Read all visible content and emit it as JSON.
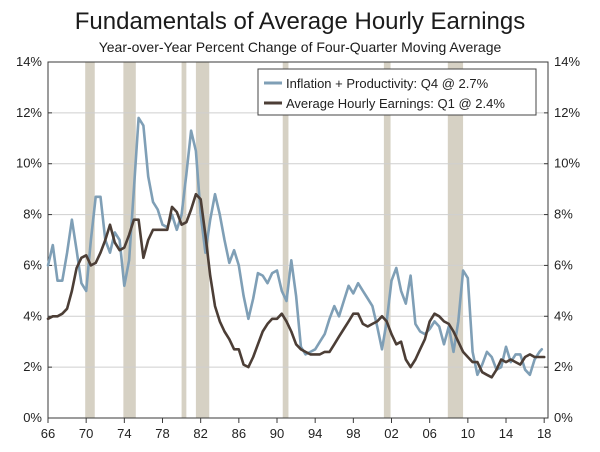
{
  "chart_data": {
    "type": "line",
    "title": "Fundamentals of Average Hourly Earnings",
    "subtitle": "Year-over-Year Percent Change of Four-Quarter Moving Average",
    "xlabel": "",
    "ylabel": "",
    "xlim": [
      1966,
      2018.4
    ],
    "ylim": [
      0,
      14
    ],
    "x_ticks": [
      1966,
      1970,
      1974,
      1978,
      1982,
      1986,
      1990,
      1994,
      1998,
      2002,
      2006,
      2010,
      2014,
      2018
    ],
    "x_tick_labels": [
      "66",
      "70",
      "74",
      "78",
      "82",
      "86",
      "90",
      "94",
      "98",
      "02",
      "06",
      "10",
      "14",
      "18"
    ],
    "y_ticks": [
      0,
      2,
      4,
      6,
      8,
      10,
      12,
      14
    ],
    "y_tick_labels": [
      "0%",
      "2%",
      "4%",
      "6%",
      "8%",
      "10%",
      "12%",
      "14%"
    ],
    "grid": "horizontal",
    "legend_position": "top-right",
    "recessions": [
      [
        1969.9,
        1970.9
      ],
      [
        1973.9,
        1975.2
      ],
      [
        1980.0,
        1980.5
      ],
      [
        1981.5,
        1982.9
      ],
      [
        1990.6,
        1991.2
      ],
      [
        2001.2,
        2001.9
      ],
      [
        2007.9,
        2009.5
      ]
    ],
    "series": [
      {
        "name": "Inflation + Productivity: Q4 @ 2.7%",
        "color": "#7f9fb6",
        "x": [
          1966.0,
          1966.5,
          1967.0,
          1967.5,
          1968.0,
          1968.5,
          1969.0,
          1969.5,
          1970.0,
          1970.5,
          1971.0,
          1971.5,
          1972.0,
          1972.5,
          1973.0,
          1973.5,
          1974.0,
          1974.5,
          1975.0,
          1975.5,
          1976.0,
          1976.5,
          1977.0,
          1977.5,
          1978.0,
          1978.5,
          1979.0,
          1979.5,
          1980.0,
          1980.5,
          1981.0,
          1981.5,
          1982.0,
          1982.5,
          1983.0,
          1983.5,
          1984.0,
          1984.5,
          1985.0,
          1985.5,
          1986.0,
          1986.5,
          1987.0,
          1987.5,
          1988.0,
          1988.5,
          1989.0,
          1989.5,
          1990.0,
          1990.5,
          1991.0,
          1991.5,
          1992.0,
          1992.5,
          1993.0,
          1993.5,
          1994.0,
          1994.5,
          1995.0,
          1995.5,
          1996.0,
          1996.5,
          1997.0,
          1997.5,
          1998.0,
          1998.5,
          1999.0,
          1999.5,
          2000.0,
          2000.5,
          2001.0,
          2001.5,
          2002.0,
          2002.5,
          2003.0,
          2003.5,
          2004.0,
          2004.5,
          2005.0,
          2005.5,
          2006.0,
          2006.5,
          2007.0,
          2007.5,
          2008.0,
          2008.5,
          2009.0,
          2009.5,
          2010.0,
          2010.5,
          2011.0,
          2011.5,
          2012.0,
          2012.5,
          2013.0,
          2013.5,
          2014.0,
          2014.5,
          2015.0,
          2015.5,
          2016.0,
          2016.5,
          2017.0,
          2017.5,
          2017.75
        ],
        "values": [
          6.0,
          6.8,
          5.4,
          5.4,
          6.5,
          7.8,
          6.6,
          5.3,
          5.0,
          7.0,
          8.7,
          8.7,
          7.0,
          6.5,
          7.3,
          7.0,
          5.2,
          6.2,
          9.0,
          11.8,
          11.5,
          9.5,
          8.5,
          8.2,
          7.6,
          7.5,
          8.0,
          7.4,
          8.0,
          9.6,
          11.3,
          10.5,
          8.0,
          6.5,
          7.8,
          8.8,
          8.0,
          7.0,
          6.1,
          6.6,
          6.0,
          4.8,
          3.9,
          4.7,
          5.7,
          5.6,
          5.3,
          5.7,
          5.8,
          5.0,
          4.6,
          6.2,
          4.8,
          2.8,
          2.5,
          2.6,
          2.7,
          3.0,
          3.3,
          3.9,
          4.4,
          4.0,
          4.6,
          5.2,
          4.9,
          5.3,
          5.0,
          4.7,
          4.4,
          3.6,
          2.7,
          3.8,
          5.4,
          5.9,
          5.0,
          4.5,
          5.6,
          3.7,
          3.4,
          3.3,
          3.5,
          3.8,
          3.6,
          2.9,
          3.6,
          2.6,
          3.8,
          5.8,
          5.5,
          2.6,
          1.7,
          2.1,
          2.6,
          2.4,
          1.9,
          2.0,
          2.8,
          2.2,
          2.5,
          2.5,
          1.9,
          1.7,
          2.3,
          2.6,
          2.7
        ]
      },
      {
        "name": "Average Hourly Earnings: Q1 @ 2.4%",
        "color": "#4c3e36",
        "x": [
          1966.0,
          1966.5,
          1967.0,
          1967.5,
          1968.0,
          1968.5,
          1969.0,
          1969.5,
          1970.0,
          1970.5,
          1971.0,
          1971.5,
          1972.0,
          1972.5,
          1973.0,
          1973.5,
          1974.0,
          1974.5,
          1975.0,
          1975.5,
          1976.0,
          1976.5,
          1977.0,
          1977.5,
          1978.0,
          1978.5,
          1979.0,
          1979.5,
          1980.0,
          1980.5,
          1981.0,
          1981.5,
          1982.0,
          1982.5,
          1983.0,
          1983.5,
          1984.0,
          1984.5,
          1985.0,
          1985.5,
          1986.0,
          1986.5,
          1987.0,
          1987.5,
          1988.0,
          1988.5,
          1989.0,
          1989.5,
          1990.0,
          1990.5,
          1991.0,
          1991.5,
          1992.0,
          1992.5,
          1993.0,
          1993.5,
          1994.0,
          1994.5,
          1995.0,
          1995.5,
          1996.0,
          1996.5,
          1997.0,
          1997.5,
          1998.0,
          1998.5,
          1999.0,
          1999.5,
          2000.0,
          2000.5,
          2001.0,
          2001.5,
          2002.0,
          2002.5,
          2003.0,
          2003.5,
          2004.0,
          2004.5,
          2005.0,
          2005.5,
          2006.0,
          2006.5,
          2007.0,
          2007.5,
          2008.0,
          2008.5,
          2009.0,
          2009.5,
          2010.0,
          2010.5,
          2011.0,
          2011.5,
          2012.0,
          2012.5,
          2013.0,
          2013.5,
          2014.0,
          2014.5,
          2015.0,
          2015.5,
          2016.0,
          2016.5,
          2017.0,
          2017.5,
          2018.0
        ],
        "values": [
          3.9,
          4.0,
          4.0,
          4.1,
          4.3,
          5.0,
          5.9,
          6.3,
          6.4,
          6.0,
          6.1,
          6.5,
          7.0,
          7.6,
          6.9,
          6.6,
          6.7,
          7.2,
          7.8,
          7.8,
          6.3,
          7.0,
          7.4,
          7.4,
          7.4,
          7.4,
          8.3,
          8.1,
          7.6,
          7.7,
          8.2,
          8.8,
          8.6,
          7.2,
          5.6,
          4.4,
          3.8,
          3.4,
          3.1,
          2.7,
          2.7,
          2.1,
          2.0,
          2.4,
          2.9,
          3.4,
          3.7,
          3.9,
          3.9,
          4.1,
          3.8,
          3.4,
          2.9,
          2.7,
          2.6,
          2.5,
          2.5,
          2.5,
          2.6,
          2.6,
          2.9,
          3.2,
          3.5,
          3.8,
          4.1,
          4.1,
          3.7,
          3.6,
          3.7,
          3.8,
          4.0,
          3.8,
          3.3,
          2.9,
          3.0,
          2.3,
          2.0,
          2.3,
          2.7,
          3.1,
          3.8,
          4.1,
          4.0,
          3.8,
          3.7,
          3.4,
          3.0,
          2.6,
          2.4,
          2.2,
          2.2,
          1.8,
          1.7,
          1.6,
          1.9,
          2.3,
          2.2,
          2.3,
          2.2,
          2.1,
          2.4,
          2.5,
          2.4,
          2.4,
          2.4
        ]
      }
    ]
  }
}
